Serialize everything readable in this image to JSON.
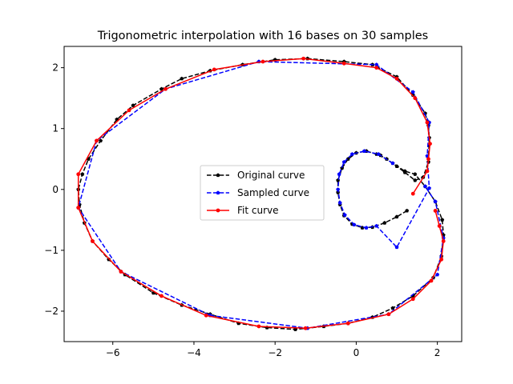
{
  "chart_data": {
    "type": "line",
    "title": "Trigonometric interpolation with 16 bases on 30 samples",
    "xlabel": "",
    "ylabel": "",
    "xlim": [
      -7.2,
      2.6
    ],
    "ylim": [
      -2.5,
      2.35
    ],
    "xticks": [
      -6,
      -4,
      -2,
      0,
      2
    ],
    "yticks": [
      -2,
      -1,
      0,
      1,
      2
    ],
    "xtick_labels": [
      "−6",
      "−4",
      "−2",
      "0",
      "2"
    ],
    "ytick_labels": [
      "−2",
      "−1",
      "0",
      "1",
      "2"
    ],
    "grid": false,
    "legend_position": "center",
    "series": [
      {
        "name": "Original curve",
        "color": "#000000",
        "linestyle": "dashed",
        "marker": "pentagon",
        "points": [
          [
            1.25,
            -0.35
          ],
          [
            1.0,
            -0.45
          ],
          [
            0.7,
            -0.55
          ],
          [
            0.4,
            -0.62
          ],
          [
            0.15,
            -0.63
          ],
          [
            -0.1,
            -0.57
          ],
          [
            -0.3,
            -0.43
          ],
          [
            -0.4,
            -0.25
          ],
          [
            -0.45,
            -0.05
          ],
          [
            -0.45,
            0.15
          ],
          [
            -0.35,
            0.35
          ],
          [
            -0.2,
            0.5
          ],
          [
            0.0,
            0.6
          ],
          [
            0.25,
            0.63
          ],
          [
            0.5,
            0.58
          ],
          [
            0.75,
            0.5
          ],
          [
            1.0,
            0.38
          ],
          [
            1.2,
            0.28
          ],
          [
            1.45,
            0.15
          ],
          [
            1.65,
            0.2
          ],
          [
            1.78,
            0.45
          ],
          [
            1.8,
            0.85
          ],
          [
            1.78,
            1.05
          ],
          [
            1.7,
            1.25
          ],
          [
            1.4,
            1.55
          ],
          [
            1.0,
            1.85
          ],
          [
            0.4,
            2.05
          ],
          [
            -0.3,
            2.1
          ],
          [
            -1.2,
            2.15
          ],
          [
            -2.0,
            2.13
          ],
          [
            -2.8,
            2.05
          ],
          [
            -3.6,
            1.95
          ],
          [
            -4.3,
            1.82
          ],
          [
            -4.8,
            1.65
          ],
          [
            -5.5,
            1.38
          ],
          [
            -5.9,
            1.15
          ],
          [
            -6.3,
            0.8
          ],
          [
            -6.6,
            0.5
          ],
          [
            -6.75,
            0.25
          ],
          [
            -6.85,
            0.0
          ],
          [
            -6.82,
            -0.25
          ],
          [
            -6.7,
            -0.55
          ],
          [
            -6.5,
            -0.85
          ],
          [
            -6.1,
            -1.15
          ],
          [
            -5.7,
            -1.4
          ],
          [
            -5.0,
            -1.7
          ],
          [
            -4.3,
            -1.9
          ],
          [
            -3.6,
            -2.05
          ],
          [
            -2.9,
            -2.2
          ],
          [
            -2.2,
            -2.27
          ],
          [
            -1.5,
            -2.3
          ],
          [
            -0.8,
            -2.25
          ],
          [
            -0.2,
            -2.2
          ],
          [
            0.4,
            -2.1
          ],
          [
            0.9,
            -1.95
          ],
          [
            1.4,
            -1.75
          ],
          [
            1.9,
            -1.45
          ],
          [
            2.1,
            -1.1
          ],
          [
            2.15,
            -0.75
          ],
          [
            2.12,
            -0.5
          ],
          [
            1.95,
            -0.2
          ],
          [
            1.7,
            0.05
          ],
          [
            1.45,
            0.25
          ],
          [
            1.2,
            0.3
          ],
          [
            0.9,
            0.43
          ],
          [
            0.6,
            0.56
          ]
        ]
      },
      {
        "name": "Sampled curve",
        "color": "#0000ff",
        "linestyle": "dashed",
        "marker": "pentagon",
        "points": [
          [
            0.9,
            0.43
          ],
          [
            0.55,
            0.58
          ],
          [
            0.2,
            0.63
          ],
          [
            -0.1,
            0.58
          ],
          [
            -0.3,
            0.45
          ],
          [
            -0.42,
            0.25
          ],
          [
            -0.45,
            0.0
          ],
          [
            -0.4,
            -0.22
          ],
          [
            -0.28,
            -0.42
          ],
          [
            -0.05,
            -0.58
          ],
          [
            0.25,
            -0.63
          ],
          [
            0.5,
            -0.6
          ],
          [
            1.0,
            -0.95
          ],
          [
            1.8,
            0.02
          ],
          [
            1.75,
            0.55
          ],
          [
            1.8,
            1.1
          ],
          [
            1.4,
            1.6
          ],
          [
            0.5,
            2.05
          ],
          [
            -2.4,
            2.1
          ],
          [
            -4.7,
            1.65
          ],
          [
            -6.4,
            0.8
          ],
          [
            -6.85,
            -0.3
          ],
          [
            -5.8,
            -1.35
          ],
          [
            -3.6,
            -2.07
          ],
          [
            -1.2,
            -2.28
          ],
          [
            0.8,
            -2.05
          ],
          [
            2.0,
            -1.4
          ],
          [
            2.15,
            -0.8
          ],
          [
            1.95,
            -0.2
          ],
          [
            1.7,
            0.05
          ]
        ]
      },
      {
        "name": "Fit curve",
        "color": "#ff0000",
        "linestyle": "solid",
        "marker": "circle",
        "points": [
          [
            1.95,
            -0.35
          ],
          [
            2.05,
            -0.6
          ],
          [
            2.15,
            -0.85
          ],
          [
            2.1,
            -1.15
          ],
          [
            1.85,
            -1.5
          ],
          [
            1.4,
            -1.8
          ],
          [
            0.8,
            -2.05
          ],
          [
            -0.2,
            -2.2
          ],
          [
            -1.25,
            -2.28
          ],
          [
            -2.4,
            -2.25
          ],
          [
            -3.7,
            -2.07
          ],
          [
            -4.8,
            -1.75
          ],
          [
            -5.8,
            -1.35
          ],
          [
            -6.5,
            -0.85
          ],
          [
            -6.85,
            -0.3
          ],
          [
            -6.85,
            0.25
          ],
          [
            -6.4,
            0.8
          ],
          [
            -5.6,
            1.3
          ],
          [
            -4.7,
            1.65
          ],
          [
            -3.5,
            1.97
          ],
          [
            -2.3,
            2.1
          ],
          [
            -1.3,
            2.15
          ],
          [
            -0.3,
            2.07
          ],
          [
            0.5,
            2.0
          ],
          [
            1.0,
            1.82
          ],
          [
            1.45,
            1.5
          ],
          [
            1.75,
            1.1
          ],
          [
            1.82,
            0.75
          ],
          [
            1.78,
            0.5
          ],
          [
            1.75,
            0.3
          ],
          [
            1.4,
            -0.07
          ]
        ]
      }
    ]
  }
}
